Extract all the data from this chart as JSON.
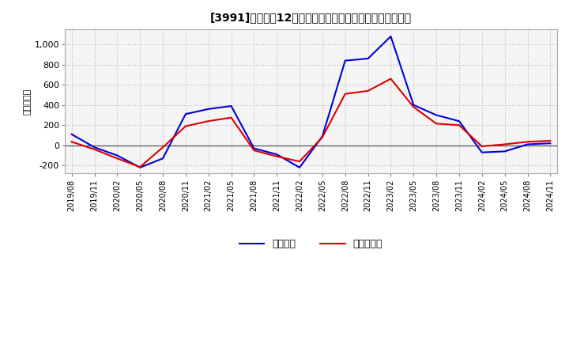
{
  "title": "[3991]　利益だ12か月移動合計の対前年同期増減額の推移",
  "ylabel": "（百万円）",
  "background_color": "#ffffff",
  "plot_bg_color": "#f5f5f5",
  "grid_color": "#bbbbbb",
  "ylim": [
    -280,
    1150
  ],
  "yticks": [
    -200,
    0,
    200,
    400,
    600,
    800,
    1000
  ],
  "x_labels": [
    "2019/08",
    "2019/11",
    "2020/02",
    "2020/05",
    "2020/08",
    "2020/11",
    "2021/02",
    "2021/05",
    "2021/08",
    "2021/11",
    "2022/02",
    "2022/05",
    "2022/08",
    "2022/11",
    "2023/02",
    "2023/05",
    "2023/08",
    "2023/11",
    "2024/02",
    "2024/05",
    "2024/08",
    "2024/11"
  ],
  "blue_values": [
    110,
    -20,
    -100,
    -220,
    -130,
    310,
    360,
    390,
    -30,
    -90,
    -220,
    90,
    840,
    860,
    1080,
    400,
    300,
    240,
    -70,
    -60,
    10,
    20
  ],
  "red_values": [
    35,
    -40,
    -130,
    -215,
    -20,
    190,
    240,
    275,
    -50,
    -110,
    -160,
    80,
    510,
    540,
    660,
    380,
    215,
    200,
    -10,
    10,
    35,
    45
  ],
  "blue_color": "#0000dd",
  "red_color": "#dd0000",
  "legend_blue": "経常利益",
  "legend_red": "当期純利益",
  "line_width": 1.5
}
